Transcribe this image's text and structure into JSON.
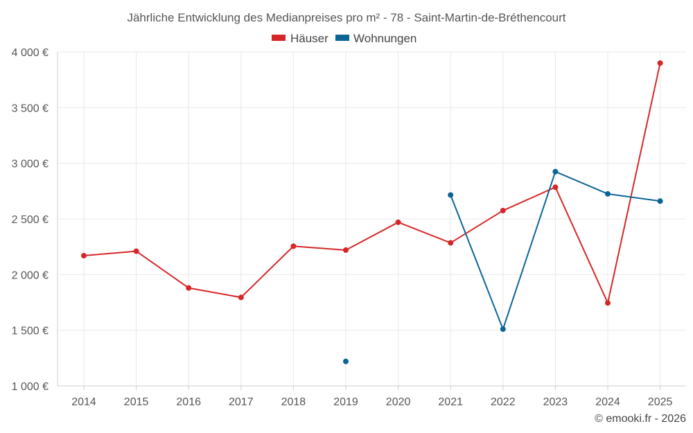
{
  "chart_data": {
    "type": "line",
    "title": "Jährliche Entwicklung des Medianpreises pro m² - 78 - Saint-Martin-de-Bréthencourt",
    "categories": [
      "2014",
      "2015",
      "2016",
      "2017",
      "2018",
      "2019",
      "2020",
      "2021",
      "2022",
      "2023",
      "2024",
      "2025"
    ],
    "ylim": [
      1000,
      4000
    ],
    "yticks": [
      1000,
      1500,
      2000,
      2500,
      3000,
      3500,
      4000
    ],
    "ytick_labels": [
      "1 000 €",
      "1 500 €",
      "2 000 €",
      "2 500 €",
      "3 000 €",
      "3 500 €",
      "4 000 €"
    ],
    "legend_position": "top-center",
    "grid": true,
    "series": [
      {
        "name": "Häuser",
        "color": "#d62728",
        "values": [
          2170,
          2210,
          1880,
          1795,
          2255,
          2220,
          2470,
          2285,
          2575,
          2785,
          1745,
          3900
        ]
      },
      {
        "name": "Wohnungen",
        "color": "#0b6496",
        "values": [
          null,
          null,
          null,
          null,
          null,
          1220,
          null,
          2715,
          1510,
          2925,
          2725,
          2660
        ]
      }
    ]
  },
  "credit": "© emooki.fr - 2026"
}
